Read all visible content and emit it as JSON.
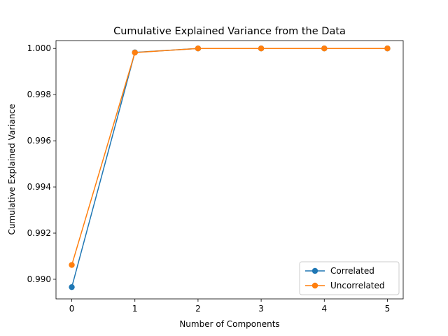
{
  "chart_data": {
    "type": "line",
    "title": "Cumulative Explained Variance from the Data",
    "xlabel": "Number of Components",
    "ylabel": "Cumulative Explained Variance",
    "xlim": [
      -0.25,
      5.25
    ],
    "ylim": [
      0.98915,
      1.00034
    ],
    "xticks": [
      0,
      1,
      2,
      3,
      4,
      5
    ],
    "yticks": [
      0.99,
      0.992,
      0.994,
      0.996,
      0.998,
      1.0
    ],
    "ytick_labels": [
      "0.990",
      "0.992",
      "0.994",
      "0.996",
      "0.998",
      "1.000"
    ],
    "grid": false,
    "legend_position": "lower-right",
    "x": [
      0,
      1,
      2,
      3,
      4,
      5
    ],
    "series": [
      {
        "name": "Correlated",
        "color": "#1f77b4",
        "values": [
          0.98966,
          0.99983,
          1.0,
          1.0,
          1.0,
          1.0
        ]
      },
      {
        "name": "Uncorrelated",
        "color": "#ff7f0e",
        "values": [
          0.99062,
          0.99982,
          1.0,
          1.0,
          1.0,
          1.0
        ]
      }
    ]
  }
}
